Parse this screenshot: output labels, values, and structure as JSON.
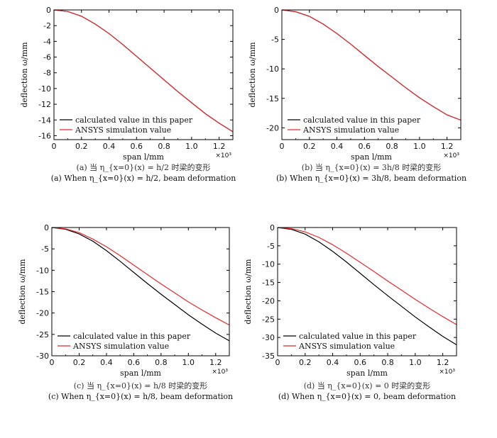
{
  "chart_data": [
    {
      "type": "line",
      "xlabel": "span l/mm",
      "ylabel": "deflection ω/mm",
      "x_multiplier": "×10³",
      "xlim": [
        0,
        1.3
      ],
      "ylim": [
        -16.5,
        0
      ],
      "xticks": [
        "0",
        "0.2",
        "0.4",
        "0.6",
        "0.8",
        "1.0",
        "1.2"
      ],
      "xtick_values": [
        0,
        0.2,
        0.4,
        0.6,
        0.8,
        1.0,
        1.2
      ],
      "yticks": [
        "0",
        "-2",
        "-4",
        "-6",
        "-8",
        "-10",
        "-12",
        "-14",
        "-16"
      ],
      "ytick_values": [
        0,
        -2,
        -4,
        -6,
        -8,
        -10,
        -12,
        -14,
        -16
      ],
      "legend": "bottom-left",
      "series": [
        {
          "name": "calculated value in this paper",
          "color": "#000000",
          "x": [
            0,
            0.1,
            0.2,
            0.3,
            0.4,
            0.5,
            0.6,
            0.7,
            0.8,
            0.9,
            1.0,
            1.1,
            1.2,
            1.3
          ],
          "y": [
            0,
            -0.2,
            -0.8,
            -1.8,
            -3.0,
            -4.4,
            -5.9,
            -7.4,
            -8.9,
            -10.4,
            -11.8,
            -13.2,
            -14.4,
            -15.5
          ]
        },
        {
          "name": "ANSYS simulation value",
          "color": "#e8282b",
          "x": [
            0,
            0.1,
            0.2,
            0.3,
            0.4,
            0.5,
            0.6,
            0.7,
            0.8,
            0.9,
            1.0,
            1.1,
            1.2,
            1.3
          ],
          "y": [
            0,
            -0.2,
            -0.8,
            -1.8,
            -3.0,
            -4.4,
            -5.9,
            -7.4,
            -8.9,
            -10.4,
            -11.8,
            -13.2,
            -14.4,
            -15.5
          ]
        }
      ],
      "caption_cn": "(a) 当 η_{x=0}(x) = h/2 时梁的变形",
      "caption_en": "(a) When η_{x=0}(x) = h/2, beam deformation"
    },
    {
      "type": "line",
      "xlabel": "span l/mm",
      "ylabel": "deflection ω/mm",
      "x_multiplier": "×10³",
      "xlim": [
        0,
        1.3
      ],
      "ylim": [
        -22,
        0
      ],
      "xticks": [
        "0",
        "0.2",
        "0.4",
        "0.6",
        "0.8",
        "1.0",
        "1.2"
      ],
      "xtick_values": [
        0,
        0.2,
        0.4,
        0.6,
        0.8,
        1.0,
        1.2
      ],
      "yticks": [
        "0",
        "-5",
        "-10",
        "-15",
        "-20"
      ],
      "ytick_values": [
        0,
        -5,
        -10,
        -15,
        -20
      ],
      "legend": "bottom-left",
      "series": [
        {
          "name": "calculated value in this paper",
          "color": "#000000",
          "x": [
            0,
            0.1,
            0.2,
            0.3,
            0.4,
            0.5,
            0.6,
            0.7,
            0.8,
            0.9,
            1.0,
            1.1,
            1.2,
            1.3
          ],
          "y": [
            0,
            -0.3,
            -1.1,
            -2.4,
            -4.0,
            -5.8,
            -7.7,
            -9.6,
            -11.4,
            -13.2,
            -14.9,
            -16.4,
            -17.8,
            -18.7
          ]
        },
        {
          "name": "ANSYS simulation value",
          "color": "#e8282b",
          "x": [
            0,
            0.1,
            0.2,
            0.3,
            0.4,
            0.5,
            0.6,
            0.7,
            0.8,
            0.9,
            1.0,
            1.1,
            1.2,
            1.3
          ],
          "y": [
            0,
            -0.3,
            -1.1,
            -2.4,
            -4.0,
            -5.8,
            -7.7,
            -9.6,
            -11.4,
            -13.2,
            -14.9,
            -16.4,
            -17.8,
            -18.7
          ]
        }
      ],
      "caption_cn": "(b) 当 η_{x=0}(x) = 3h/8 时梁的变形",
      "caption_en": "(b) When η_{x=0}(x) = 3h/8, beam deformation"
    },
    {
      "type": "line",
      "xlabel": "span l/mm",
      "ylabel": "deflection ω/mm",
      "x_multiplier": "×10³",
      "xlim": [
        0,
        1.3
      ],
      "ylim": [
        -30,
        0
      ],
      "xticks": [
        "0",
        "0.2",
        "0.4",
        "0.6",
        "0.8",
        "1.0",
        "1.2"
      ],
      "xtick_values": [
        0,
        0.2,
        0.4,
        0.6,
        0.8,
        1.0,
        1.2
      ],
      "yticks": [
        "0",
        "-5",
        "-10",
        "-15",
        "-20",
        "-25",
        "-30"
      ],
      "ytick_values": [
        0,
        -5,
        -10,
        -15,
        -20,
        -25,
        -30
      ],
      "legend": "bottom-left",
      "series": [
        {
          "name": "calculated value in this paper",
          "color": "#000000",
          "x": [
            0,
            0.1,
            0.2,
            0.3,
            0.4,
            0.5,
            0.6,
            0.7,
            0.8,
            0.9,
            1.0,
            1.1,
            1.2,
            1.3
          ],
          "y": [
            0,
            -0.4,
            -1.5,
            -3.2,
            -5.4,
            -7.9,
            -10.5,
            -13.1,
            -15.6,
            -18.0,
            -20.4,
            -22.6,
            -24.7,
            -26.5
          ]
        },
        {
          "name": "ANSYS simulation value",
          "color": "#e8282b",
          "x": [
            0,
            0.1,
            0.2,
            0.3,
            0.4,
            0.5,
            0.6,
            0.7,
            0.8,
            0.9,
            1.0,
            1.1,
            1.2,
            1.3
          ],
          "y": [
            0,
            -0.3,
            -1.2,
            -2.7,
            -4.5,
            -6.6,
            -8.8,
            -11.0,
            -13.2,
            -15.3,
            -17.4,
            -19.3,
            -21.1,
            -22.8
          ]
        }
      ],
      "caption_cn": "(c) 当 η_{x=0}(x) = h/8 时梁的变形",
      "caption_en": "(c) When η_{x=0}(x) = h/8, beam deformation"
    },
    {
      "type": "line",
      "xlabel": "span l/mm",
      "ylabel": "deflection ω/mm",
      "x_multiplier": "×10³",
      "xlim": [
        0,
        1.3
      ],
      "ylim": [
        -35,
        0
      ],
      "xticks": [
        "0",
        "0.2",
        "0.4",
        "0.6",
        "0.8",
        "1.0",
        "1.2"
      ],
      "xtick_values": [
        0,
        0.2,
        0.4,
        0.6,
        0.8,
        1.0,
        1.2
      ],
      "yticks": [
        "0",
        "-5",
        "-10",
        "-15",
        "-20",
        "-25",
        "-30",
        "-35"
      ],
      "ytick_values": [
        0,
        -5,
        -10,
        -15,
        -20,
        -25,
        -30,
        -35
      ],
      "legend": "bottom-left",
      "series": [
        {
          "name": "calculated value in this paper",
          "color": "#000000",
          "x": [
            0,
            0.1,
            0.2,
            0.3,
            0.4,
            0.5,
            0.6,
            0.7,
            0.8,
            0.9,
            1.0,
            1.1,
            1.2,
            1.3
          ],
          "y": [
            0,
            -0.5,
            -1.8,
            -3.9,
            -6.5,
            -9.4,
            -12.5,
            -15.6,
            -18.6,
            -21.5,
            -24.4,
            -27.1,
            -29.7,
            -32.0
          ]
        },
        {
          "name": "ANSYS simulation value",
          "color": "#e8282b",
          "x": [
            0,
            0.1,
            0.2,
            0.3,
            0.4,
            0.5,
            0.6,
            0.7,
            0.8,
            0.9,
            1.0,
            1.1,
            1.2,
            1.3
          ],
          "y": [
            0,
            -0.3,
            -1.2,
            -2.7,
            -4.7,
            -7.0,
            -9.5,
            -12.0,
            -14.6,
            -17.1,
            -19.6,
            -22.0,
            -24.3,
            -26.5
          ]
        }
      ],
      "caption_cn": "(d) 当 η_{x=0}(x) = 0 时梁的变形",
      "caption_en": "(d) When η_{x=0}(x) = 0, beam deformation"
    }
  ]
}
